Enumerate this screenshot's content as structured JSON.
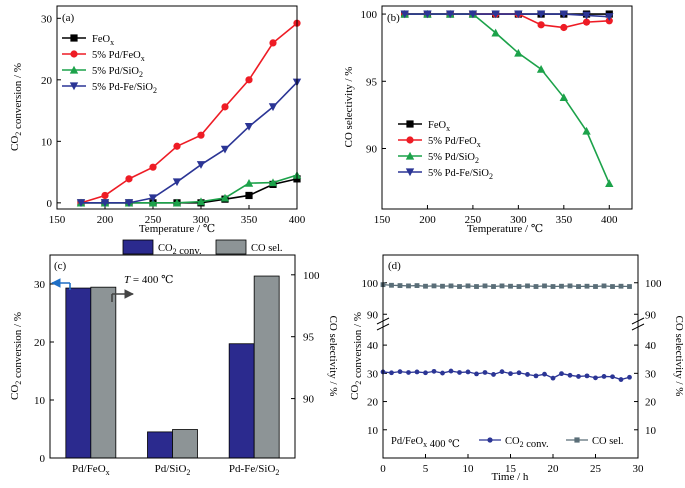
{
  "chart_data": [
    {
      "type": "line",
      "panel_label": "(a)",
      "xlabel": "Temperature / ℃",
      "ylabel": "CO2 conversion / %",
      "xlim": [
        150,
        400
      ],
      "ylim": [
        -1,
        32
      ],
      "xticks": [
        150,
        200,
        250,
        300,
        350,
        400
      ],
      "yticks": [
        0,
        10,
        20,
        30
      ],
      "legend_position": "top-left",
      "x": [
        175,
        200,
        225,
        250,
        275,
        300,
        325,
        350,
        375,
        400
      ],
      "series": [
        {
          "name": "FeOx",
          "color": "#000000",
          "marker": "square",
          "values": [
            0,
            0,
            0,
            0,
            0,
            0,
            0.6,
            1.2,
            3,
            3.9
          ]
        },
        {
          "name": "5% Pd/FeOx",
          "color": "#ee1c25",
          "marker": "circle",
          "values": [
            0,
            1.2,
            3.9,
            5.8,
            9.2,
            11,
            15.6,
            20,
            26,
            29.2
          ]
        },
        {
          "name": "5% Pd/SiO2",
          "color": "#1ca24a",
          "marker": "triangle-up",
          "values": [
            0,
            0,
            0,
            0,
            0,
            0.2,
            0.8,
            3.2,
            3.3,
            4.5
          ]
        },
        {
          "name": "5% Pd-Fe/SiO2",
          "color": "#2b3595",
          "marker": "triangle-down",
          "values": [
            0,
            0,
            0,
            0.8,
            3.4,
            6.2,
            8.7,
            12.4,
            15.6,
            19.6
          ]
        }
      ]
    },
    {
      "type": "line",
      "panel_label": "(b)",
      "xlabel": "Temperature / ℃",
      "ylabel": "CO selectivity / %",
      "xlim": [
        150,
        425
      ],
      "ylim": [
        85.5,
        100.6
      ],
      "xticks": [
        150,
        200,
        250,
        300,
        350,
        400
      ],
      "yticks": [
        90,
        95,
        100
      ],
      "legend_position": "bottom-left",
      "x": [
        175,
        200,
        225,
        250,
        275,
        300,
        325,
        350,
        375,
        400
      ],
      "series": [
        {
          "name": "FeOx",
          "color": "#000000",
          "marker": "square",
          "values": [
            100,
            100,
            100,
            100,
            100,
            100,
            100,
            100,
            100,
            100
          ]
        },
        {
          "name": "5% Pd/FeOx",
          "color": "#ee1c25",
          "marker": "circle",
          "values": [
            100,
            100,
            100,
            100,
            100,
            100,
            99.2,
            99,
            99.4,
            99.5
          ]
        },
        {
          "name": "5% Pd/SiO2",
          "color": "#1ca24a",
          "marker": "triangle-up",
          "values": [
            100,
            100,
            100,
            100,
            98.6,
            97.1,
            95.9,
            93.8,
            91.3,
            87.4
          ]
        },
        {
          "name": "5% Pd-Fe/SiO2",
          "color": "#2b3595",
          "marker": "triangle-down",
          "values": [
            100,
            100,
            100,
            100,
            100,
            100,
            100,
            100,
            99.9,
            99.8
          ]
        }
      ]
    },
    {
      "type": "bar",
      "panel_label": "(c)",
      "annotation": "T = 400 ℃",
      "ylabel": "CO2 conversion / %",
      "y2label": "CO selectivity / %",
      "ylim": [
        0,
        35
      ],
      "yticks": [
        0,
        10,
        20,
        30
      ],
      "y2lim": [
        85.2,
        101.6
      ],
      "y2ticks": [
        90,
        95,
        100
      ],
      "categories": [
        "Pd/FeOx",
        "Pd/SiO2",
        "Pd-Fe/SiO2"
      ],
      "legend_position": "top",
      "series": [
        {
          "name": "CO2 conv.",
          "axis": "left",
          "color": "#2b2a8e",
          "values": [
            29.3,
            4.5,
            19.7
          ]
        },
        {
          "name": "CO sel.",
          "axis": "right",
          "color": "#8d9496",
          "values": [
            99,
            87.5,
            99.9
          ]
        }
      ]
    },
    {
      "type": "line",
      "panel_label": "(d)",
      "annotation": "Pd/FeOx 400 ℃",
      "xlabel": "Time / h",
      "ylabel": "CO2 conversion / %",
      "y2label": "CO selectivity / %",
      "xlim": [
        0,
        30
      ],
      "xticks": [
        0,
        5,
        10,
        15,
        20,
        25,
        30
      ],
      "yticks": [
        10,
        20,
        30,
        40,
        90,
        100
      ],
      "axis_break": "between 40 and 90",
      "legend_position": "bottom",
      "series": [
        {
          "name": "CO2 conv.",
          "axis": "left",
          "color": "#2b3595",
          "marker": "circle",
          "x": [
            0,
            1,
            2,
            3,
            4,
            5,
            6,
            7,
            8,
            9,
            10,
            11,
            12,
            13,
            14,
            15,
            16,
            17,
            18,
            19,
            20,
            21,
            22,
            23,
            24,
            25,
            26,
            27,
            28,
            29
          ],
          "values": [
            30.5,
            30.2,
            30.6,
            30.3,
            30.5,
            30.2,
            30.7,
            30.1,
            30.8,
            30.3,
            30.5,
            29.8,
            30.3,
            29.6,
            30.6,
            29.9,
            30.2,
            29.6,
            29.1,
            29.7,
            28.3,
            29.9,
            29.3,
            28.9,
            29.1,
            28.4,
            28.9,
            28.8,
            27.8,
            28.6
          ]
        },
        {
          "name": "CO sel.",
          "axis": "right",
          "color": "#5a6e78",
          "marker": "square",
          "x": [
            0,
            1,
            2,
            3,
            4,
            5,
            6,
            7,
            8,
            9,
            10,
            11,
            12,
            13,
            14,
            15,
            16,
            17,
            18,
            19,
            20,
            21,
            22,
            23,
            24,
            25,
            26,
            27,
            28,
            29
          ],
          "values": [
            99.4,
            99.2,
            99.1,
            99,
            99.1,
            98.9,
            99,
            98.9,
            99,
            98.8,
            99,
            98.8,
            99,
            98.8,
            99,
            98.9,
            98.8,
            99,
            98.8,
            99,
            98.8,
            98.9,
            99,
            98.8,
            98.9,
            98.8,
            99,
            98.8,
            98.9,
            98.8
          ]
        }
      ]
    }
  ]
}
